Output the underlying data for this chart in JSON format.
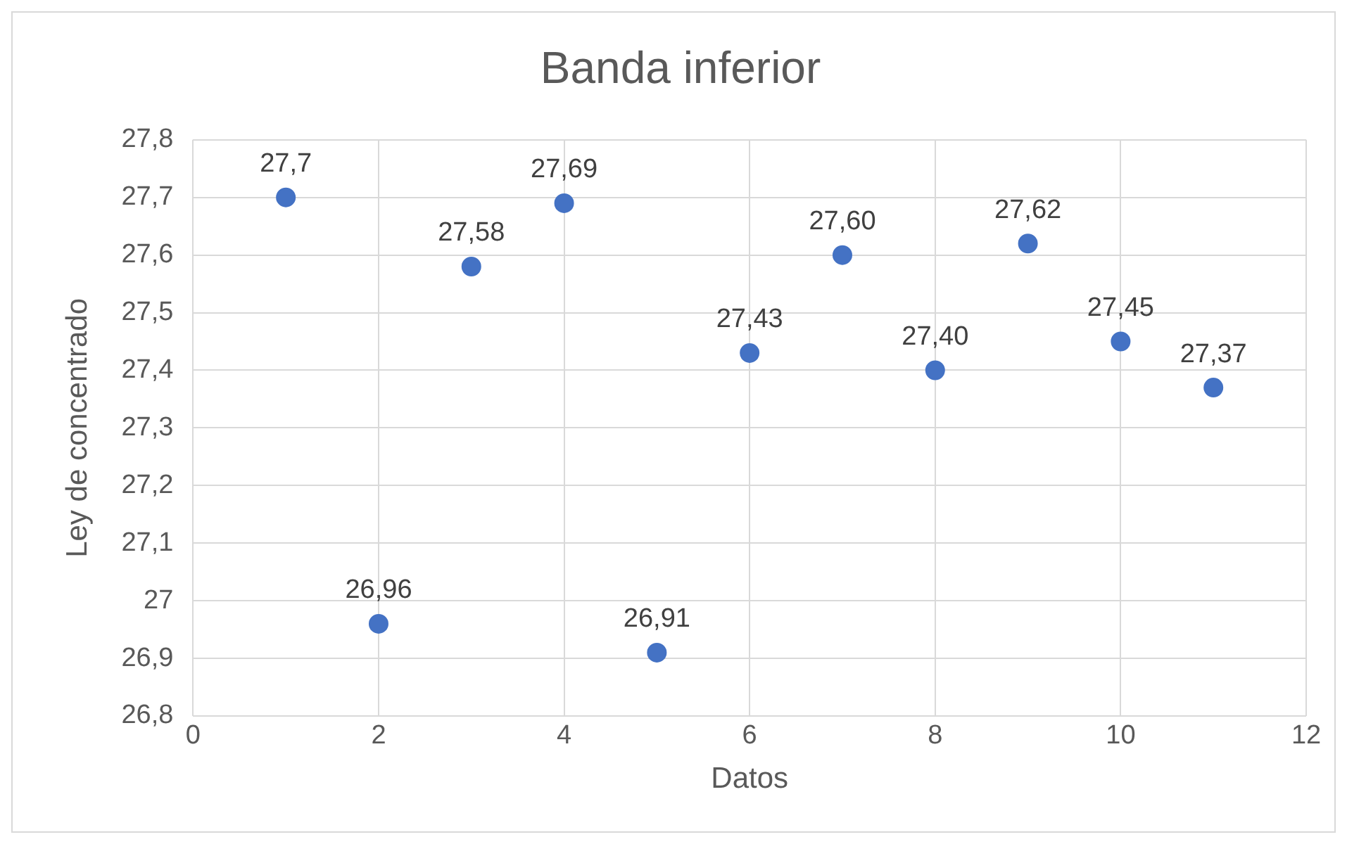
{
  "chart_data": {
    "type": "scatter",
    "title": "Banda inferior",
    "xlabel": "Datos",
    "ylabel": "Ley de concentrado",
    "x": [
      1,
      2,
      3,
      4,
      5,
      6,
      7,
      8,
      9,
      10,
      11
    ],
    "series": [
      {
        "color": "#4472c4",
        "values": [
          27.7,
          26.96,
          27.58,
          27.69,
          26.91,
          27.43,
          27.6,
          27.4,
          27.62,
          27.45,
          27.37
        ],
        "value_labels": [
          "27,7",
          "26,96",
          "27,58",
          "27,69",
          "26,91",
          "27,43",
          "27,60",
          "27,40",
          "27,62",
          "27,45",
          "27,37"
        ]
      }
    ],
    "xlim": [
      0,
      12
    ],
    "xticks": [
      0,
      2,
      4,
      6,
      8,
      10,
      12
    ],
    "ylim": [
      26.8,
      27.8
    ],
    "yticks": [
      {
        "value": 26.8,
        "label": "26,8"
      },
      {
        "value": 26.9,
        "label": "26,9"
      },
      {
        "value": 27,
        "label": "27"
      },
      {
        "value": 27.1,
        "label": "27,1"
      },
      {
        "value": 27.2,
        "label": "27,2"
      },
      {
        "value": 27.3,
        "label": "27,3"
      },
      {
        "value": 27.4,
        "label": "27,4"
      },
      {
        "value": 27.5,
        "label": "27,5"
      },
      {
        "value": 27.6,
        "label": "27,6"
      },
      {
        "value": 27.7,
        "label": "27,7"
      },
      {
        "value": 27.8,
        "label": "27,8"
      }
    ],
    "grid": true,
    "legend": false,
    "marker": "circle"
  }
}
